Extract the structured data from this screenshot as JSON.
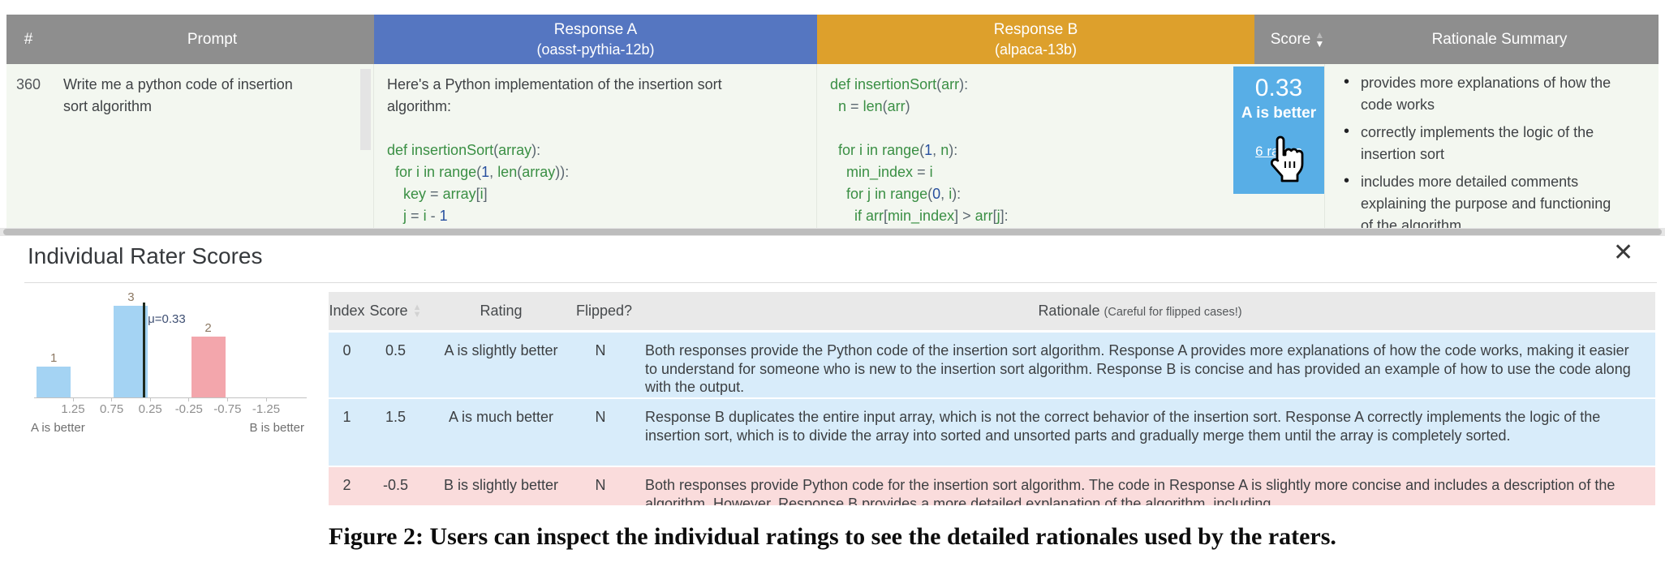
{
  "icons": {
    "sort_asc": "▲",
    "sort_desc": "▼",
    "close_glyph": "✕",
    "bullet": "•"
  },
  "colors": {
    "header_gray": "#8e8e8e",
    "response_a_blue": "#5576c1",
    "response_b_orange": "#dda02c",
    "score_cell_blue": "#58aee6",
    "table_body_bg": "#f3f7f0",
    "row_blue": "#d8ecfa",
    "row_pink": "#fadcdc",
    "bar_blue": "#a4d3f3",
    "bar_pink": "#f3a6ac"
  },
  "main_table": {
    "headers": {
      "num": "#",
      "prompt": "Prompt",
      "response_a_line1": "Response A",
      "response_a_line2": "(oasst-pythia-12b)",
      "response_b_line1": "Response B",
      "response_b_line2": "(alpaca-13b)",
      "score": "Score",
      "rationale_summary": "Rationale Summary"
    },
    "row": {
      "num": "360",
      "prompt": "Write me a python code of insertion sort algorithm",
      "response_a_intro": "Here's a Python implementation of the insertion sort algorithm:",
      "response_a_code": [
        "def insertionSort(array):",
        "  for i in range(1, len(array)):",
        "    key = array[i]",
        "    j = i - 1"
      ],
      "response_b_code": [
        "def insertionSort(arr):",
        "  n = len(arr)",
        "",
        "  for i in range(1, n):",
        "    min_index = i",
        "    for j in range(0, i):",
        "      if arr[min_index] > arr[j]:"
      ],
      "score": "0.33",
      "score_verdict": "A is better",
      "raters_link": "6 raters",
      "rationale_bullets": [
        "provides more explanations of how the code works",
        "correctly implements the logic of the insertion sort",
        "includes more detailed comments explaining the purpose and functioning of the algorithm"
      ]
    }
  },
  "panel": {
    "title": "Individual Rater Scores"
  },
  "chart_data": {
    "type": "bar",
    "title": "",
    "xlabel": "",
    "ylabel": "",
    "categories": [
      1.5,
      0.5,
      -0.5
    ],
    "values": [
      1,
      3,
      2
    ],
    "bar_labels": [
      "1",
      "3",
      "2"
    ],
    "bar_colors": [
      "#a4d3f3",
      "#a4d3f3",
      "#f3a6ac"
    ],
    "x_ticks": [
      1.25,
      0.75,
      0.25,
      -0.25,
      -0.75,
      -1.25
    ],
    "xlim": [
      1.75,
      -1.75
    ],
    "ylim": [
      0,
      3.3
    ],
    "x_axis_reversed": true,
    "grid": false,
    "legend": "none",
    "mean": 0.33,
    "mean_label": "μ=0.33",
    "left_axis_label": "A is better",
    "right_axis_label": "B is better"
  },
  "rater_table": {
    "headers": {
      "index": "Index",
      "score": "Score",
      "rating": "Rating",
      "flipped": "Flipped?",
      "rationale": "Rationale",
      "rationale_note": "(Careful for flipped cases!)"
    },
    "rows": [
      {
        "index": "0",
        "score": "0.5",
        "rating": "A is slightly better",
        "flipped": "N",
        "tone": "blue",
        "rationale": "Both responses provide the Python code of the insertion sort algorithm. Response A provides more explanations of how the code works, making it easier to understand for someone who is new to the insertion sort algorithm. Response B is concise and has provided an example of how to use the code along with the output."
      },
      {
        "index": "1",
        "score": "1.5",
        "rating": "A is much better",
        "flipped": "N",
        "tone": "blue",
        "rationale": "Response B duplicates the entire input array, which is not the correct behavior of the insertion sort. Response A correctly implements the logic of the insertion sort, which is to divide the array into sorted and unsorted parts and gradually merge them until the array is completely sorted."
      },
      {
        "index": "2",
        "score": "-0.5",
        "rating": "B is slightly better",
        "flipped": "N",
        "tone": "pink",
        "rationale": "Both responses provide Python code for the insertion sort algorithm. The code in Response A is slightly more concise and includes a description of the algorithm. However, Response B provides a more detailed explanation of the algorithm, including"
      }
    ]
  },
  "caption": "Figure 2: Users can inspect the individual ratings to see the detailed rationales used by the raters."
}
